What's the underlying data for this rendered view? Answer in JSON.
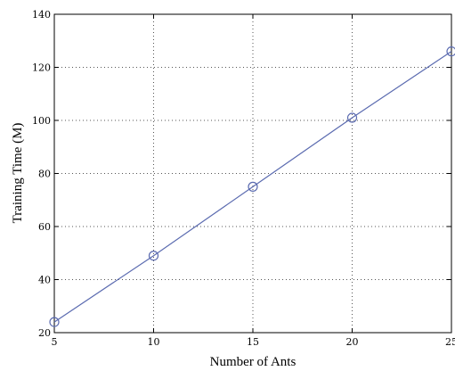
{
  "chart_data": {
    "type": "line",
    "title": "",
    "xlabel": "Number of Ants",
    "ylabel": "Training Time (M)",
    "x": [
      5,
      10,
      15,
      20,
      25
    ],
    "series": [
      {
        "values": [
          24,
          49,
          75,
          101,
          126
        ],
        "color": "#5b6bb0",
        "marker": "circle"
      }
    ],
    "xlim": [
      5,
      25
    ],
    "ylim": [
      20,
      140
    ],
    "xticks": [
      "5",
      "10",
      "15",
      "20",
      "25"
    ],
    "yticks": [
      "20",
      "40",
      "60",
      "80",
      "100",
      "120",
      "140"
    ],
    "grid": true
  }
}
